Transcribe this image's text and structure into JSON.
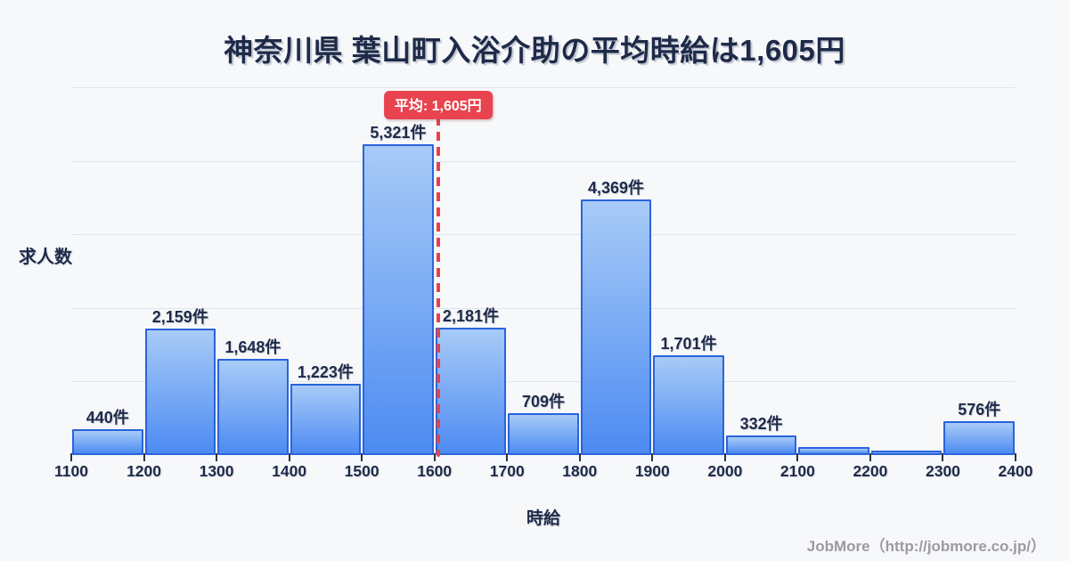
{
  "title": "神奈川県 葉山町入浴介助の平均時給は1,605円",
  "footer": "JobMore（http://jobmore.co.jp/）",
  "colors": {
    "background": "#f7f8fa",
    "title_text": "#1e2a48",
    "bar_border": "#2a64dc",
    "bar_fill_top": "#a8cbf7",
    "bar_fill_bottom": "#4d8bf2",
    "gridline": "#dfe4ee",
    "average_red": "#e8434e",
    "footer_gray": "#9b9ba1"
  },
  "chart_data": {
    "type": "bar",
    "title": "神奈川県 葉山町入浴介助の平均時給は1,605円",
    "xlabel": "時給",
    "ylabel": "求人数",
    "x_ticks": [
      1100,
      1200,
      1300,
      1400,
      1500,
      1600,
      1700,
      1800,
      1900,
      2000,
      2100,
      2200,
      2300,
      2400
    ],
    "bin_width": 100,
    "xlim": [
      1100,
      2400
    ],
    "ylim": [
      0,
      6300
    ],
    "grid": "horizontal",
    "average": 1605,
    "average_label": "平均: 1,605円",
    "bins": [
      {
        "start": 1100,
        "end": 1200,
        "value": 440,
        "label": "440件"
      },
      {
        "start": 1200,
        "end": 1300,
        "value": 2159,
        "label": "2,159件"
      },
      {
        "start": 1300,
        "end": 1400,
        "value": 1648,
        "label": "1,648件"
      },
      {
        "start": 1400,
        "end": 1500,
        "value": 1223,
        "label": "1,223件"
      },
      {
        "start": 1500,
        "end": 1600,
        "value": 5321,
        "label": "5,321件"
      },
      {
        "start": 1600,
        "end": 1700,
        "value": 2181,
        "label": "2,181件"
      },
      {
        "start": 1700,
        "end": 1800,
        "value": 709,
        "label": "709件"
      },
      {
        "start": 1800,
        "end": 1900,
        "value": 4369,
        "label": "4,369件"
      },
      {
        "start": 1900,
        "end": 2000,
        "value": 1701,
        "label": "1,701件"
      },
      {
        "start": 2000,
        "end": 2100,
        "value": 332,
        "label": "332件"
      },
      {
        "start": 2100,
        "end": 2200,
        "value": 140,
        "label": ""
      },
      {
        "start": 2200,
        "end": 2300,
        "value": 70,
        "label": ""
      },
      {
        "start": 2300,
        "end": 2400,
        "value": 576,
        "label": "576件"
      }
    ]
  }
}
